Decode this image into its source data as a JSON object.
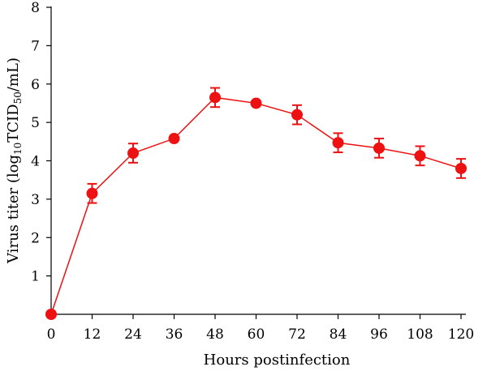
{
  "chart_data": {
    "type": "line",
    "title": "",
    "xlabel": "Hours postinfection",
    "ylabel": {
      "prefix": "Virus titer (log",
      "sub1": "10",
      "mid": "TCID",
      "sub2": "50",
      "suffix": "/mL)"
    },
    "x": [
      0,
      12,
      24,
      36,
      48,
      60,
      72,
      84,
      96,
      108,
      120
    ],
    "series": [
      {
        "values": [
          0,
          3.15,
          4.2,
          4.58,
          5.65,
          5.5,
          5.2,
          4.47,
          4.33,
          4.13,
          3.8
        ],
        "errors": [
          0,
          0.25,
          0.25,
          0,
          0.25,
          0,
          0.25,
          0.25,
          0.25,
          0.25,
          0.25
        ],
        "color": "#ee1111"
      }
    ],
    "xticks": [
      0,
      12,
      24,
      36,
      48,
      60,
      72,
      84,
      96,
      108,
      120
    ],
    "yticks": [
      1,
      2,
      3,
      4,
      5,
      6,
      7,
      8
    ],
    "xlim": [
      0,
      120
    ],
    "ylim": [
      0,
      8
    ],
    "grid": false,
    "legend": "none"
  }
}
